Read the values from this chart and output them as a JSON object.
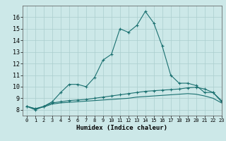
{
  "title": "",
  "xlabel": "Humidex (Indice chaleur)",
  "ylabel": "",
  "bg_color": "#cce8e8",
  "grid_color": "#aacece",
  "line_color": "#1a7070",
  "xlim": [
    -0.5,
    23
  ],
  "ylim": [
    7.5,
    17.0
  ],
  "yticks": [
    8,
    9,
    10,
    11,
    12,
    13,
    14,
    15,
    16
  ],
  "xticks": [
    0,
    1,
    2,
    3,
    4,
    5,
    6,
    7,
    8,
    9,
    10,
    11,
    12,
    13,
    14,
    15,
    16,
    17,
    18,
    19,
    20,
    21,
    22,
    23
  ],
  "line1_x": [
    0,
    1,
    2,
    3,
    4,
    5,
    6,
    7,
    8,
    9,
    10,
    11,
    12,
    13,
    14,
    15,
    16,
    17,
    18,
    19,
    20,
    21,
    22,
    23
  ],
  "line1_y": [
    8.3,
    8.0,
    8.3,
    8.7,
    9.5,
    10.2,
    10.2,
    10.0,
    10.8,
    12.3,
    12.8,
    15.0,
    14.7,
    15.3,
    16.5,
    15.5,
    13.5,
    11.0,
    10.3,
    10.3,
    10.1,
    9.5,
    9.5,
    8.7
  ],
  "line2_x": [
    0,
    1,
    2,
    3,
    4,
    5,
    6,
    7,
    8,
    9,
    10,
    11,
    12,
    13,
    14,
    15,
    16,
    17,
    18,
    19,
    20,
    21,
    22,
    23
  ],
  "line2_y": [
    8.3,
    8.1,
    8.3,
    8.6,
    8.7,
    8.8,
    8.85,
    8.9,
    9.0,
    9.1,
    9.2,
    9.3,
    9.4,
    9.5,
    9.6,
    9.65,
    9.7,
    9.75,
    9.8,
    9.9,
    9.95,
    9.8,
    9.5,
    8.8
  ],
  "line3_x": [
    0,
    1,
    2,
    3,
    4,
    5,
    6,
    7,
    8,
    9,
    10,
    11,
    12,
    13,
    14,
    15,
    16,
    17,
    18,
    19,
    20,
    21,
    22,
    23
  ],
  "line3_y": [
    8.3,
    8.1,
    8.25,
    8.5,
    8.6,
    8.65,
    8.7,
    8.75,
    8.8,
    8.85,
    8.9,
    8.95,
    9.0,
    9.1,
    9.15,
    9.2,
    9.25,
    9.3,
    9.35,
    9.4,
    9.35,
    9.2,
    9.0,
    8.6
  ]
}
